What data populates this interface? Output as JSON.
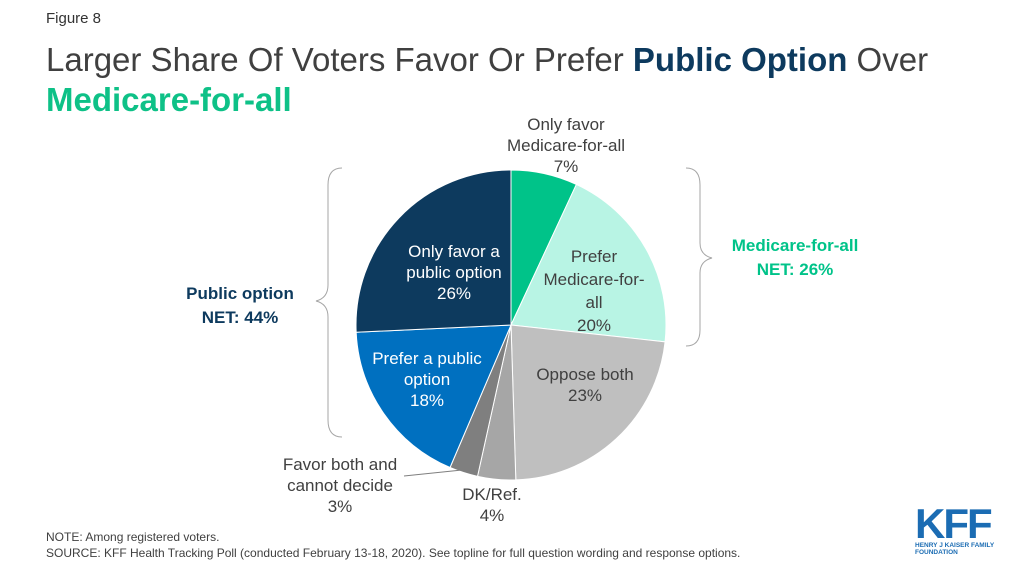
{
  "figure_label": "Figure 8",
  "title": {
    "part1": "Larger Share Of Voters Favor Or Prefer ",
    "emph1": "Public Option",
    "part2": " Over ",
    "emph2": "Medicare-for-all"
  },
  "chart_data": {
    "type": "pie",
    "slices": [
      {
        "label_lines": [
          "Only favor",
          "Medicare-for-all",
          "7%"
        ],
        "value": 7,
        "color": "#00c389"
      },
      {
        "label_lines": [
          "Prefer",
          "Medicare-for-",
          "all",
          "20%"
        ],
        "value": 20,
        "color": "#b8f4e4"
      },
      {
        "label_lines": [
          "Oppose both",
          "23%"
        ],
        "value": 23,
        "color": "#bfbfbf"
      },
      {
        "label_lines": [
          "DK/Ref.",
          "4%"
        ],
        "value": 4,
        "color": "#a6a6a6"
      },
      {
        "label_lines": [
          "Favor both and",
          "cannot decide",
          "3%"
        ],
        "value": 3,
        "color": "#7f7f7f"
      },
      {
        "label_lines": [
          "Prefer a public",
          "option",
          "18%"
        ],
        "value": 18,
        "color": "#0070c0"
      },
      {
        "label_lines": [
          "Only favor a",
          "public option",
          "26%"
        ],
        "value": 26,
        "color": "#0d3a5e"
      }
    ],
    "groups": [
      {
        "label_lines": [
          "Medicare-for-all",
          "NET: 26%"
        ],
        "color": "#00c389"
      },
      {
        "label_lines": [
          "Public option",
          "NET: 44%"
        ],
        "color": "#0d3a5e"
      }
    ]
  },
  "note": "NOTE: Among registered voters.",
  "source": "SOURCE: KFF Health Tracking Poll (conducted February 13-18, 2020). See topline for full question wording and response options.",
  "logo": {
    "mark": "KFF",
    "sub": "HENRY J KAISER FAMILY FOUNDATION"
  }
}
